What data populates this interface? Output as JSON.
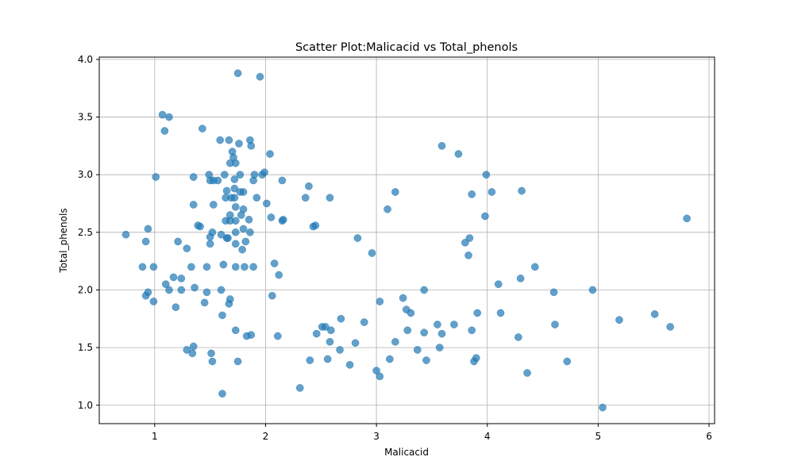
{
  "chart_data": {
    "type": "scatter",
    "title": "Scatter Plot:Malicacid vs Total_phenols",
    "xlabel": "Malicacid",
    "ylabel": "Total_phenols",
    "xlim": [
      0.5,
      6.05
    ],
    "ylim": [
      0.84,
      4.02
    ],
    "xticks": [
      1,
      2,
      3,
      4,
      5,
      6
    ],
    "xtick_labels": [
      "1",
      "2",
      "3",
      "4",
      "5",
      "6"
    ],
    "yticks": [
      1.0,
      1.5,
      2.0,
      2.5,
      3.0,
      3.5,
      4.0
    ],
    "ytick_labels": [
      "1.0",
      "1.5",
      "2.0",
      "2.5",
      "3.0",
      "3.5",
      "4.0"
    ],
    "grid": true,
    "marker_color": "#1f77b4",
    "marker_alpha": 0.7,
    "points": [
      [
        0.74,
        2.48
      ],
      [
        0.89,
        2.2
      ],
      [
        0.92,
        1.95
      ],
      [
        0.92,
        2.42
      ],
      [
        0.94,
        2.53
      ],
      [
        0.94,
        1.98
      ],
      [
        0.99,
        2.2
      ],
      [
        0.99,
        1.9
      ],
      [
        1.01,
        2.98
      ],
      [
        1.07,
        3.52
      ],
      [
        1.09,
        3.38
      ],
      [
        1.1,
        2.05
      ],
      [
        1.13,
        3.5
      ],
      [
        1.13,
        2.0
      ],
      [
        1.17,
        2.11
      ],
      [
        1.19,
        1.85
      ],
      [
        1.21,
        2.42
      ],
      [
        1.24,
        2.1
      ],
      [
        1.24,
        2.0
      ],
      [
        1.29,
        2.36
      ],
      [
        1.29,
        1.48
      ],
      [
        1.33,
        2.2
      ],
      [
        1.34,
        1.45
      ],
      [
        1.35,
        2.98
      ],
      [
        1.35,
        2.74
      ],
      [
        1.35,
        1.51
      ],
      [
        1.36,
        2.02
      ],
      [
        1.39,
        2.56
      ],
      [
        1.41,
        2.55
      ],
      [
        1.43,
        3.4
      ],
      [
        1.45,
        1.89
      ],
      [
        1.47,
        2.2
      ],
      [
        1.47,
        1.98
      ],
      [
        1.49,
        3.0
      ],
      [
        1.5,
        2.95
      ],
      [
        1.5,
        2.4
      ],
      [
        1.5,
        2.46
      ],
      [
        1.51,
        1.45
      ],
      [
        1.52,
        2.5
      ],
      [
        1.52,
        1.38
      ],
      [
        1.53,
        2.95
      ],
      [
        1.53,
        2.74
      ],
      [
        1.57,
        2.95
      ],
      [
        1.59,
        3.3
      ],
      [
        1.6,
        2.48
      ],
      [
        1.6,
        2.0
      ],
      [
        1.61,
        1.78
      ],
      [
        1.61,
        1.1
      ],
      [
        1.62,
        2.22
      ],
      [
        1.63,
        3.0
      ],
      [
        1.64,
        2.8
      ],
      [
        1.64,
        2.6
      ],
      [
        1.65,
        2.45
      ],
      [
        1.65,
        2.86
      ],
      [
        1.66,
        2.45
      ],
      [
        1.67,
        3.3
      ],
      [
        1.67,
        1.88
      ],
      [
        1.68,
        3.1
      ],
      [
        1.68,
        2.65
      ],
      [
        1.68,
        2.6
      ],
      [
        1.68,
        1.92
      ],
      [
        1.69,
        2.8
      ],
      [
        1.7,
        3.2
      ],
      [
        1.71,
        3.15
      ],
      [
        1.72,
        2.96
      ],
      [
        1.72,
        2.88
      ],
      [
        1.72,
        2.8
      ],
      [
        1.73,
        3.1
      ],
      [
        1.73,
        2.72
      ],
      [
        1.73,
        2.6
      ],
      [
        1.73,
        2.5
      ],
      [
        1.73,
        2.4
      ],
      [
        1.73,
        2.2
      ],
      [
        1.73,
        1.65
      ],
      [
        1.75,
        3.88
      ],
      [
        1.75,
        1.38
      ],
      [
        1.76,
        3.27
      ],
      [
        1.77,
        3.0
      ],
      [
        1.77,
        2.85
      ],
      [
        1.78,
        2.65
      ],
      [
        1.79,
        2.35
      ],
      [
        1.8,
        2.85
      ],
      [
        1.8,
        2.7
      ],
      [
        1.8,
        2.53
      ],
      [
        1.81,
        2.2
      ],
      [
        1.82,
        2.42
      ],
      [
        1.83,
        1.6
      ],
      [
        1.85,
        2.61
      ],
      [
        1.86,
        3.3
      ],
      [
        1.86,
        2.5
      ],
      [
        1.87,
        1.61
      ],
      [
        1.87,
        3.25
      ],
      [
        1.89,
        2.95
      ],
      [
        1.89,
        2.2
      ],
      [
        1.9,
        3.0
      ],
      [
        1.92,
        2.8
      ],
      [
        1.95,
        3.85
      ],
      [
        1.97,
        3.0
      ],
      [
        1.99,
        3.02
      ],
      [
        2.01,
        2.75
      ],
      [
        2.04,
        3.18
      ],
      [
        2.05,
        2.63
      ],
      [
        2.06,
        1.95
      ],
      [
        2.08,
        2.23
      ],
      [
        2.11,
        1.6
      ],
      [
        2.12,
        2.13
      ],
      [
        2.15,
        2.95
      ],
      [
        2.15,
        2.6
      ],
      [
        2.16,
        2.61
      ],
      [
        2.31,
        1.15
      ],
      [
        2.36,
        2.8
      ],
      [
        2.39,
        2.9
      ],
      [
        2.4,
        1.39
      ],
      [
        2.43,
        2.55
      ],
      [
        2.45,
        2.56
      ],
      [
        2.46,
        1.62
      ],
      [
        2.51,
        1.68
      ],
      [
        2.54,
        1.68
      ],
      [
        2.56,
        1.4
      ],
      [
        2.58,
        1.55
      ],
      [
        2.58,
        2.8
      ],
      [
        2.59,
        1.65
      ],
      [
        2.67,
        1.48
      ],
      [
        2.68,
        1.75
      ],
      [
        2.76,
        1.35
      ],
      [
        2.81,
        1.54
      ],
      [
        2.83,
        2.45
      ],
      [
        2.89,
        1.72
      ],
      [
        2.96,
        2.32
      ],
      [
        3.0,
        1.3
      ],
      [
        3.03,
        1.9
      ],
      [
        3.03,
        1.25
      ],
      [
        3.1,
        2.7
      ],
      [
        3.12,
        1.4
      ],
      [
        3.17,
        2.85
      ],
      [
        3.17,
        1.55
      ],
      [
        3.24,
        1.93
      ],
      [
        3.27,
        1.83
      ],
      [
        3.28,
        1.65
      ],
      [
        3.31,
        1.8
      ],
      [
        3.37,
        1.48
      ],
      [
        3.43,
        1.63
      ],
      [
        3.43,
        2.0
      ],
      [
        3.45,
        1.39
      ],
      [
        3.55,
        1.7
      ],
      [
        3.57,
        1.5
      ],
      [
        3.59,
        3.25
      ],
      [
        3.59,
        1.62
      ],
      [
        3.7,
        1.7
      ],
      [
        3.74,
        3.18
      ],
      [
        3.8,
        2.41
      ],
      [
        3.83,
        2.3
      ],
      [
        3.84,
        2.45
      ],
      [
        3.86,
        2.83
      ],
      [
        3.86,
        1.65
      ],
      [
        3.88,
        1.38
      ],
      [
        3.9,
        1.41
      ],
      [
        3.91,
        1.8
      ],
      [
        3.98,
        2.64
      ],
      [
        3.99,
        3.0
      ],
      [
        4.04,
        2.85
      ],
      [
        4.1,
        2.05
      ],
      [
        4.12,
        1.8
      ],
      [
        4.28,
        1.59
      ],
      [
        4.3,
        2.1
      ],
      [
        4.31,
        2.86
      ],
      [
        4.36,
        1.28
      ],
      [
        4.43,
        2.2
      ],
      [
        4.6,
        1.98
      ],
      [
        4.61,
        1.7
      ],
      [
        4.72,
        1.38
      ],
      [
        4.95,
        2.0
      ],
      [
        5.04,
        0.98
      ],
      [
        5.19,
        1.74
      ],
      [
        5.51,
        1.79
      ],
      [
        5.65,
        1.68
      ],
      [
        5.8,
        2.62
      ]
    ]
  }
}
